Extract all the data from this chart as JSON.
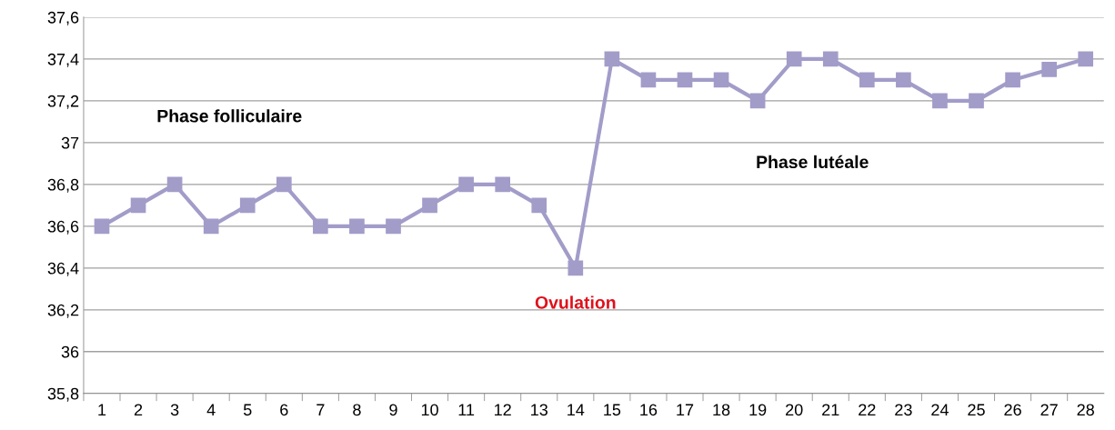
{
  "chart_data": {
    "type": "line",
    "categories": [
      "1",
      "2",
      "3",
      "4",
      "5",
      "6",
      "7",
      "8",
      "9",
      "10",
      "11",
      "12",
      "13",
      "14",
      "15",
      "16",
      "17",
      "18",
      "19",
      "20",
      "21",
      "22",
      "23",
      "24",
      "25",
      "26",
      "27",
      "28"
    ],
    "series": [
      {
        "color": "#a29cc9",
        "values": [
          36.6,
          36.7,
          36.8,
          36.6,
          36.7,
          36.8,
          36.6,
          36.6,
          36.6,
          36.7,
          36.8,
          36.8,
          36.7,
          36.4,
          37.4,
          37.3,
          37.3,
          37.3,
          37.2,
          37.4,
          37.4,
          37.3,
          37.3,
          37.2,
          37.2,
          37.3,
          37.35,
          37.4
        ]
      }
    ],
    "ylim": [
      35.8,
      37.6
    ],
    "yticks": [
      {
        "value": 35.8,
        "label": "35,8"
      },
      {
        "value": 36,
        "label": "36"
      },
      {
        "value": 36.2,
        "label": "36,2"
      },
      {
        "value": 36.4,
        "label": "36,4"
      },
      {
        "value": 36.6,
        "label": "36,6"
      },
      {
        "value": 36.8,
        "label": "36,8"
      },
      {
        "value": 37,
        "label": "37"
      },
      {
        "value": 37.2,
        "label": "37,2"
      },
      {
        "value": 37.4,
        "label": "37,4"
      },
      {
        "value": 37.6,
        "label": "37,6"
      }
    ],
    "grid": "y",
    "marker": "square",
    "line_style": "solid",
    "annotations": [
      "Phase folliculaire",
      "Phase lutéale",
      {
        "text": "Ovulation",
        "x": "14",
        "y": 36.4
      }
    ]
  }
}
